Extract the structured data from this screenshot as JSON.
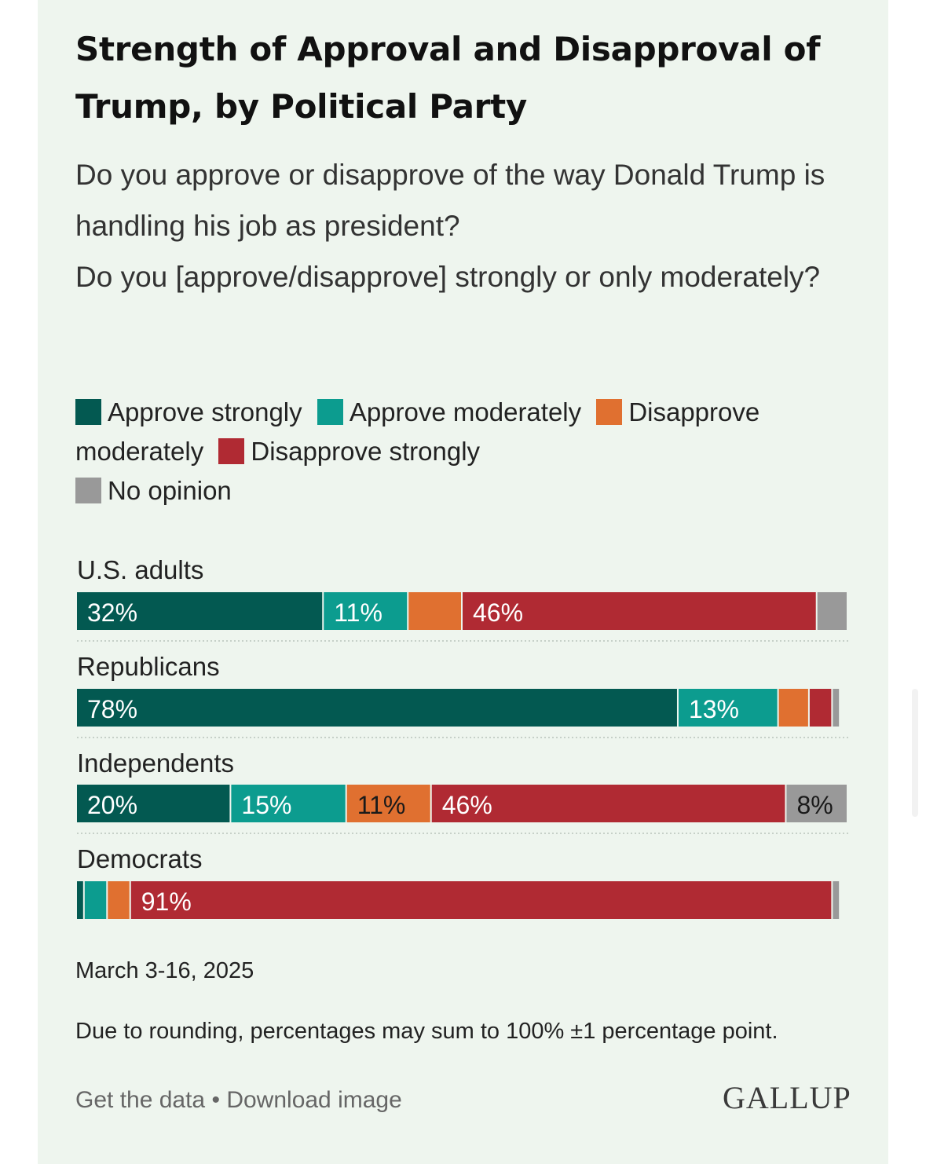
{
  "title": "Strength of Approval and Disapproval of Trump, by Political Party",
  "subtitle_lines": [
    "Do you approve or disapprove of the way Donald Trump is handling his job as president?",
    "Do you [approve/disapprove] strongly or only moderately?"
  ],
  "chart_data": {
    "type": "bar",
    "orientation": "horizontal",
    "stacked": true,
    "title": "Strength of Approval and Disapproval of Trump, by Political Party",
    "categories": [
      "U.S. adults",
      "Republicans",
      "Independents",
      "Democrats"
    ],
    "series": [
      {
        "name": "Approve strongly",
        "color": "#035951",
        "values": [
          32,
          78,
          20,
          1
        ]
      },
      {
        "name": "Approve moderately",
        "color": "#0c9c8f",
        "values": [
          11,
          13,
          15,
          3
        ]
      },
      {
        "name": "Disapprove moderately",
        "color": "#e07030",
        "values": [
          7,
          4,
          11,
          3
        ]
      },
      {
        "name": "Disapprove strongly",
        "color": "#b02a33",
        "values": [
          46,
          3,
          46,
          91
        ]
      },
      {
        "name": "No opinion",
        "color": "#999999",
        "values": [
          4,
          1,
          8,
          1
        ]
      }
    ],
    "data_labels": [
      [
        "32%",
        "11%",
        "",
        "46%",
        ""
      ],
      [
        "78%",
        "13%",
        "",
        "",
        ""
      ],
      [
        "20%",
        "15%",
        "11%",
        "46%",
        "8%"
      ],
      [
        "",
        "",
        "",
        "91%",
        ""
      ]
    ],
    "xlim": [
      0,
      100
    ],
    "legend_position": "top"
  },
  "date": "March 3-16, 2025",
  "note": "Due to rounding, percentages may sum to 100% ±1 percentage point.",
  "footer": {
    "get_data": "Get the data",
    "separator": "•",
    "download": "Download image",
    "logo": "GALLUP"
  }
}
